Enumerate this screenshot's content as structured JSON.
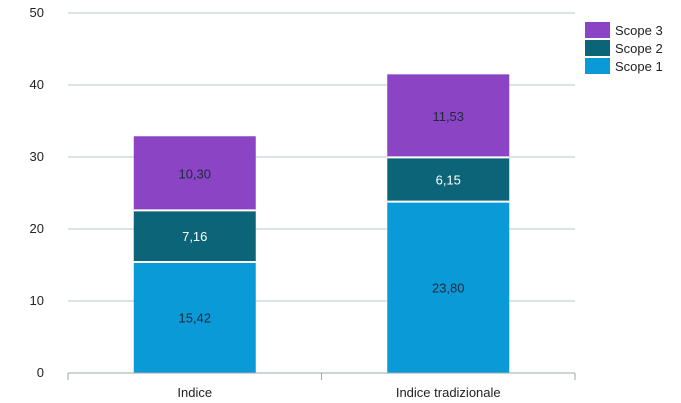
{
  "chart_data": {
    "type": "bar",
    "stacked": true,
    "categories": [
      "Indice",
      "Indice tradizionale"
    ],
    "series": [
      {
        "name": "Scope 1",
        "values": [
          15.42,
          23.8
        ],
        "labels": [
          "15,42",
          "23,80"
        ],
        "color": "#0a9ad8",
        "label_color": "#1d2b3a"
      },
      {
        "name": "Scope 2",
        "values": [
          7.16,
          6.15
        ],
        "labels": [
          "7,16",
          "6,15"
        ],
        "color": "#0b6478",
        "label_color": "#ffffff"
      },
      {
        "name": "Scope 3",
        "values": [
          10.3,
          11.53
        ],
        "labels": [
          "10,30",
          "11,53"
        ],
        "color": "#8a44c4",
        "label_color": "#1d2b3a"
      }
    ],
    "yticks": [
      "0",
      "10",
      "20",
      "30",
      "40",
      "50"
    ],
    "ylim": [
      0,
      50
    ],
    "grid": true,
    "legend": {
      "placement": "top-right",
      "order": [
        "Scope 3",
        "Scope 2",
        "Scope 1"
      ]
    },
    "title": "",
    "xlabel": "",
    "ylabel": ""
  }
}
